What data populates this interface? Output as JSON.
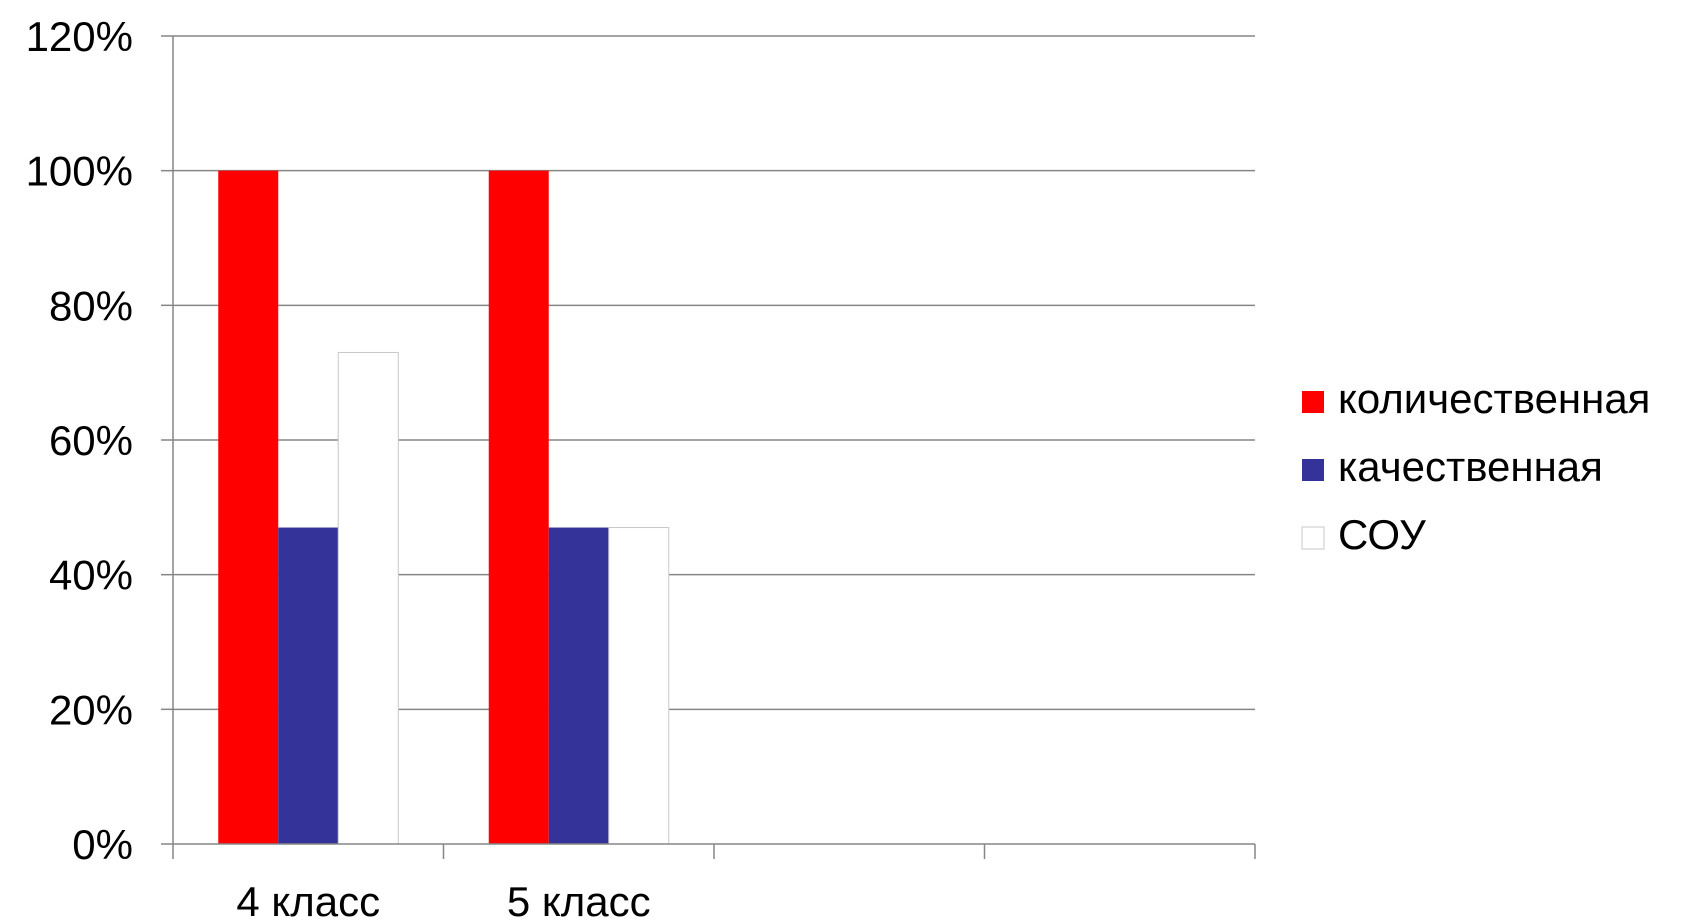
{
  "chart_data": {
    "type": "bar",
    "title": "",
    "xlabel": "",
    "ylabel": "",
    "categories": [
      "4 класс",
      "5 класс",
      "",
      ""
    ],
    "series": [
      {
        "name": "количественная",
        "color": "#ff0000",
        "values": [
          100,
          100,
          null,
          null
        ]
      },
      {
        "name": "качественная",
        "color": "#333399",
        "values": [
          47,
          47,
          null,
          null
        ]
      },
      {
        "name": "СОУ",
        "color": "#ffffff",
        "values": [
          73,
          47,
          null,
          null
        ]
      }
    ],
    "ylim": [
      0,
      120
    ],
    "ytick_step": 20,
    "ytick_labels": [
      "0%",
      "20%",
      "40%",
      "60%",
      "80%",
      "100%",
      "120%"
    ],
    "grid": true,
    "legend_position": "right"
  }
}
